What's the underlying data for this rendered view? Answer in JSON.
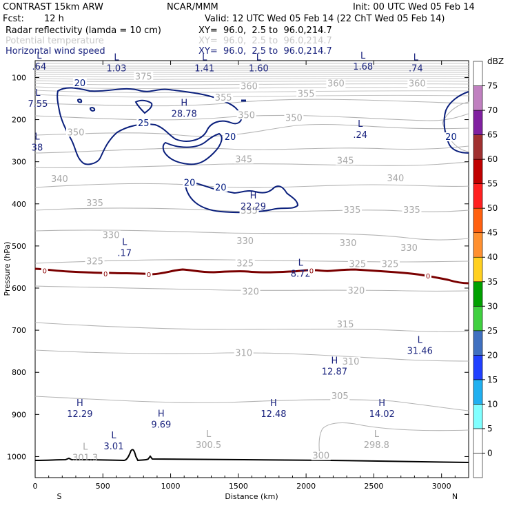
{
  "header": {
    "model": "CONTRAST 15km ARW",
    "org": "NCAR/MMM",
    "init": "Init: 00 UTC Wed 05 Feb 14",
    "fcst_label": "Fcst:",
    "fcst_value": "12 h",
    "valid": "Valid: 12 UTC Wed 05 Feb 14 (22 ChT Wed 05 Feb 14)"
  },
  "fields": [
    {
      "name": "Radar reflectivity (lamda = 10 cm)",
      "xy": "XY=  96.0,  2.5 to  96.0,214.7",
      "color": "#000000"
    },
    {
      "name": "Potential temperature",
      "xy": "XY=  96.0,  2.5 to  96.0,214.7",
      "color": "#c8c8c8"
    },
    {
      "name": "Horizontal wind speed",
      "xy": "XY=  96.0,  2.5 to  96.0,214.7",
      "color": "#1a237e"
    }
  ],
  "chart_data": {
    "type": "contour-cross-section",
    "xlabel": "Distance (km)",
    "ylabel": "Pressure (hPa)",
    "xlim": [
      0,
      3200
    ],
    "ylim": [
      1050,
      60
    ],
    "xticks": [
      0,
      500,
      1000,
      1500,
      2000,
      2500,
      3000
    ],
    "yticks": [
      100,
      200,
      300,
      400,
      500,
      600,
      700,
      800,
      900,
      1000
    ],
    "x_end_labels": {
      "left": "S",
      "right": "N"
    },
    "theta_isolines": [
      {
        "value": 375,
        "labels": [
          {
            "x": 800,
            "p": 102
          }
        ]
      },
      {
        "value": 360,
        "labels": [
          {
            "x": 1580,
            "p": 125
          },
          {
            "x": 2220,
            "p": 118
          },
          {
            "x": 2820,
            "p": 118
          }
        ]
      },
      {
        "value": 355,
        "labels": [
          {
            "x": 1390,
            "p": 152
          },
          {
            "x": 2000,
            "p": 143
          }
        ]
      },
      {
        "value": 350,
        "labels": [
          {
            "x": 300,
            "p": 234
          },
          {
            "x": 1560,
            "p": 193
          },
          {
            "x": 1910,
            "p": 200
          }
        ]
      },
      {
        "value": 345,
        "labels": [
          {
            "x": 1540,
            "p": 298
          },
          {
            "x": 2290,
            "p": 301
          }
        ]
      },
      {
        "value": 340,
        "labels": [
          {
            "x": 180,
            "p": 345
          },
          {
            "x": 2660,
            "p": 343
          }
        ]
      },
      {
        "value": 335,
        "labels": [
          {
            "x": 440,
            "p": 402
          },
          {
            "x": 1580,
            "p": 420
          },
          {
            "x": 2340,
            "p": 418
          },
          {
            "x": 2780,
            "p": 418
          }
        ]
      },
      {
        "value": 330,
        "labels": [
          {
            "x": 560,
            "p": 478
          },
          {
            "x": 1550,
            "p": 492
          },
          {
            "x": 2310,
            "p": 497
          },
          {
            "x": 2760,
            "p": 508
          }
        ]
      },
      {
        "value": 325,
        "labels": [
          {
            "x": 440,
            "p": 540
          },
          {
            "x": 1550,
            "p": 545
          },
          {
            "x": 2380,
            "p": 547
          },
          {
            "x": 2620,
            "p": 547
          }
        ]
      },
      {
        "value": 320,
        "labels": [
          {
            "x": 1590,
            "p": 612
          },
          {
            "x": 2370,
            "p": 610
          }
        ]
      },
      {
        "value": 315,
        "labels": [
          {
            "x": 2290,
            "p": 690
          }
        ]
      },
      {
        "value": 310,
        "labels": [
          {
            "x": 1540,
            "p": 758
          },
          {
            "x": 2330,
            "p": 778
          }
        ]
      },
      {
        "value": 305,
        "labels": [
          {
            "x": 2250,
            "p": 860
          }
        ]
      },
      {
        "value": 300,
        "labels": [
          {
            "x": 2110,
            "p": 1002
          }
        ]
      }
    ],
    "wind_extrema": [
      {
        "type": "L",
        "value": ".64",
        "x": 30,
        "p": 78
      },
      {
        "type": "L",
        "value": "1.03",
        "x": 600,
        "p": 82
      },
      {
        "type": "L",
        "value": "1.41",
        "x": 1250,
        "p": 82
      },
      {
        "type": "L",
        "value": "1.60",
        "x": 1650,
        "p": 82
      },
      {
        "type": "L",
        "value": "1.68",
        "x": 2420,
        "p": 78
      },
      {
        "type": "L",
        "value": ".74",
        "x": 2810,
        "p": 82
      },
      {
        "type": "L",
        "value": "7.55",
        "x": 20,
        "p": 166
      },
      {
        "type": "H",
        "value": "28.78",
        "x": 1100,
        "p": 190
      },
      {
        "type": "L",
        "value": "38",
        "x": 15,
        "p": 270
      },
      {
        "type": "L",
        "value": ".24",
        "x": 2400,
        "p": 240
      },
      {
        "type": "H",
        "value": "22.29",
        "x": 1610,
        "p": 410
      },
      {
        "type": "L",
        "value": ".17",
        "x": 660,
        "p": 521
      },
      {
        "type": "L",
        "value": "8.72",
        "x": 1960,
        "p": 570
      },
      {
        "type": "L",
        "value": "31.46",
        "x": 2840,
        "p": 753
      },
      {
        "type": "H",
        "value": "12.87",
        "x": 2210,
        "p": 802
      },
      {
        "type": "H",
        "value": "12.29",
        "x": 330,
        "p": 903
      },
      {
        "type": "H",
        "value": "9.69",
        "x": 930,
        "p": 928
      },
      {
        "type": "H",
        "value": "12.48",
        "x": 1760,
        "p": 903
      },
      {
        "type": "H",
        "value": "14.02",
        "x": 2560,
        "p": 903
      }
    ],
    "theta_extrema": [
      {
        "type": "L",
        "value": "301.3",
        "x": 370,
        "p": 1007
      },
      {
        "type": "L",
        "value": "300.5",
        "x": 1280,
        "p": 976
      },
      {
        "type": "L",
        "value": "298.8",
        "x": 2520,
        "p": 976
      }
    ],
    "surface_extrema": [
      {
        "type": "L",
        "value": "3.01",
        "x": 580,
        "p": 980
      }
    ],
    "wind_contour_labels": [
      {
        "value": "20",
        "x": 330,
        "p": 117
      },
      {
        "value": "25",
        "x": 800,
        "p": 212
      },
      {
        "value": "20",
        "x": 1440,
        "p": 245
      },
      {
        "value": "20",
        "x": 1140,
        "p": 354
      },
      {
        "value": "20",
        "x": 1370,
        "p": 365
      },
      {
        "value": "20",
        "x": 3070,
        "p": 245
      }
    ],
    "reflectivity_zero_labels": [
      {
        "value": "0",
        "x": 70,
        "p": 560
      },
      {
        "value": "0",
        "x": 520,
        "p": 567
      },
      {
        "value": "0",
        "x": 840,
        "p": 569
      },
      {
        "value": "0",
        "x": 2040,
        "p": 560
      },
      {
        "value": "0",
        "x": 2900,
        "p": 572
      }
    ],
    "colorbar": {
      "unit": "dBZ",
      "levels": [
        0,
        5,
        10,
        15,
        20,
        25,
        30,
        35,
        40,
        45,
        50,
        55,
        60,
        65,
        70,
        75
      ],
      "colors": [
        "#ffffff",
        "#ffffff",
        "#80ffff",
        "#20b0f0",
        "#2040ff",
        "#4070c0",
        "#40d040",
        "#00a000",
        "#ffd020",
        "#ff9030",
        "#ff6010",
        "#ff2020",
        "#c00000",
        "#a03030",
        "#8020a0",
        "#c080c0",
        "#ffffff"
      ]
    }
  }
}
